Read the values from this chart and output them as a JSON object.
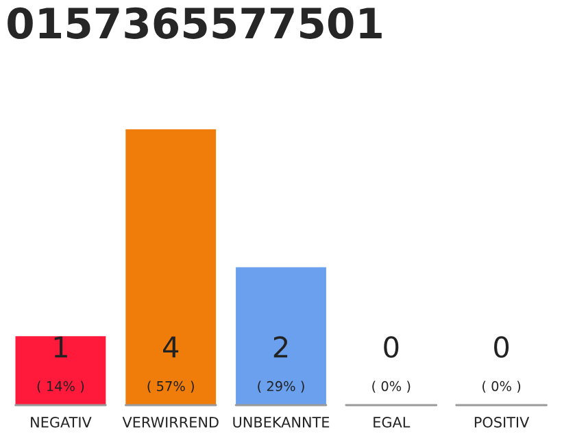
{
  "chart_data": {
    "type": "bar",
    "title": "0157365577501",
    "categories": [
      "NEGATIV",
      "VERWIRREND",
      "UNBEKANNTE",
      "EGAL",
      "POSITIV"
    ],
    "values": [
      1,
      4,
      2,
      0,
      0
    ],
    "colors": [
      "#ff1a3c",
      "#f07d0a",
      "#6aa0ee",
      "#cccccc",
      "#cccccc"
    ],
    "value_labels": [
      "1\n( 14% )",
      "4\n( 57% )",
      "2\n( 29% )",
      "0\n( 0% )",
      "0\n( 0% )"
    ],
    "grid": false,
    "legend": false
  }
}
